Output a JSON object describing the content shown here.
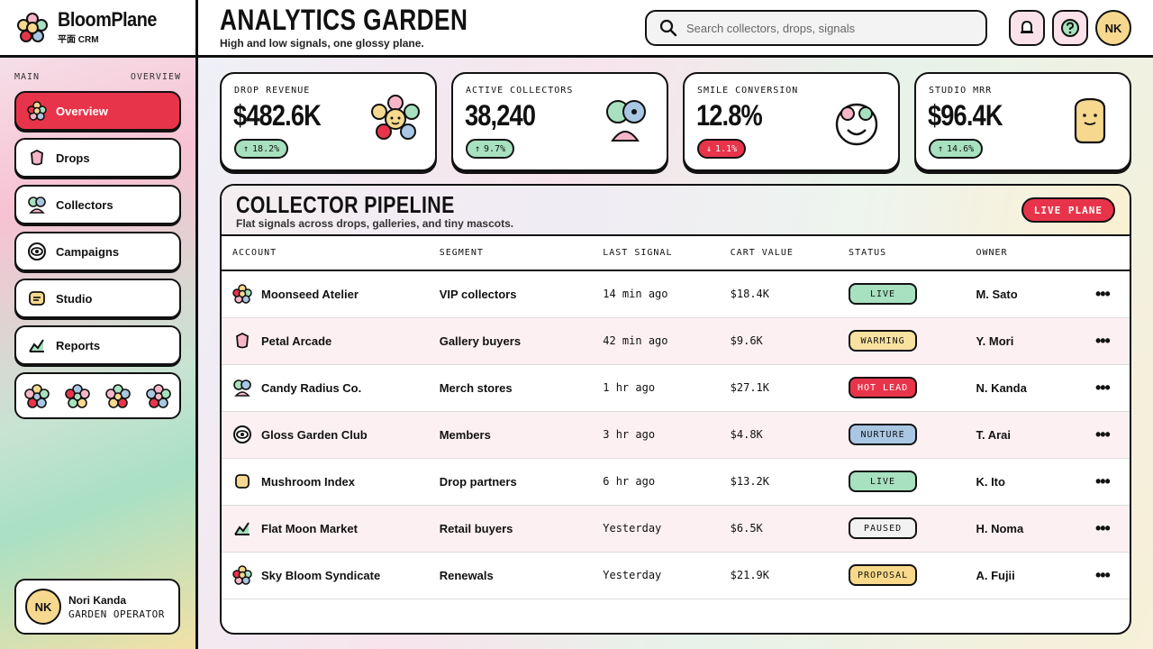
{
  "brand": {
    "name": "BloomPlane",
    "sub": "平面 CRM"
  },
  "sidebar": {
    "section_left": "MAIN",
    "section_right": "OVERVIEW",
    "items": [
      {
        "label": "Overview",
        "icon": "flower-icon",
        "active": true
      },
      {
        "label": "Drops",
        "icon": "gem-icon"
      },
      {
        "label": "Collectors",
        "icon": "people-icon"
      },
      {
        "label": "Campaigns",
        "icon": "eye-icon"
      },
      {
        "label": "Studio",
        "icon": "studio-icon"
      },
      {
        "label": "Reports",
        "icon": "chart-icon"
      }
    ],
    "user": {
      "initials": "NK",
      "name": "Nori Kanda",
      "role": "GARDEN OPERATOR"
    }
  },
  "header": {
    "title": "ANALYTICS GARDEN",
    "subtitle": "High and low signals, one glossy plane.",
    "search_placeholder": "Search collectors, drops, signals",
    "avatar_initials": "NK"
  },
  "kpis": [
    {
      "label": "DROP REVENUE",
      "value": "$482.6K",
      "delta": "18.2%",
      "direction": "up"
    },
    {
      "label": "ACTIVE COLLECTORS",
      "value": "38,240",
      "delta": "9.7%",
      "direction": "up"
    },
    {
      "label": "SMILE CONVERSION",
      "value": "12.8%",
      "delta": "1.1%",
      "direction": "down"
    },
    {
      "label": "STUDIO MRR",
      "value": "$96.4K",
      "delta": "14.6%",
      "direction": "up"
    }
  ],
  "pipeline": {
    "title": "COLLECTOR PIPELINE",
    "subtitle": "Flat signals across drops, galleries, and tiny mascots.",
    "live_label": "LIVE PLANE",
    "columns": [
      "ACCOUNT",
      "SEGMENT",
      "LAST SIGNAL",
      "CART VALUE",
      "STATUS",
      "OWNER"
    ],
    "rows": [
      {
        "account": "Moonseed Atelier",
        "icon": "flower-icon",
        "segment": "VIP collectors",
        "signal": "14 min ago",
        "value": "$18.4K",
        "status": "LIVE",
        "owner": "M. Sato"
      },
      {
        "account": "Petal Arcade",
        "icon": "gem-icon",
        "segment": "Gallery buyers",
        "signal": "42 min ago",
        "value": "$9.6K",
        "status": "WARMING",
        "owner": "Y. Mori"
      },
      {
        "account": "Candy Radius Co.",
        "icon": "people-icon",
        "segment": "Merch stores",
        "signal": "1 hr ago",
        "value": "$27.1K",
        "status": "HOT LEAD",
        "owner": "N. Kanda"
      },
      {
        "account": "Gloss Garden Club",
        "icon": "eye-icon",
        "segment": "Members",
        "signal": "3 hr ago",
        "value": "$4.8K",
        "status": "NURTURE",
        "owner": "T. Arai"
      },
      {
        "account": "Mushroom Index",
        "icon": "studio-icon",
        "segment": "Drop partners",
        "signal": "6 hr ago",
        "value": "$13.2K",
        "status": "LIVE",
        "owner": "K. Ito"
      },
      {
        "account": "Flat Moon Market",
        "icon": "chart-icon",
        "segment": "Retail buyers",
        "signal": "Yesterday",
        "value": "$6.5K",
        "status": "PAUSED",
        "owner": "H. Noma"
      },
      {
        "account": "Sky Bloom Syndicate",
        "icon": "flower-icon",
        "segment": "Renewals",
        "signal": "Yesterday",
        "value": "$21.9K",
        "status": "PROPOSAL",
        "owner": "A. Fujii"
      }
    ]
  },
  "colors": {
    "accent": "#e8344a",
    "live": "#a7e1bf",
    "warming": "#f8e2a0",
    "hot_lead": "#e8344a",
    "nurture": "#a9c6e3",
    "paused": "#f2f2f2",
    "proposal": "#f8d98a"
  }
}
